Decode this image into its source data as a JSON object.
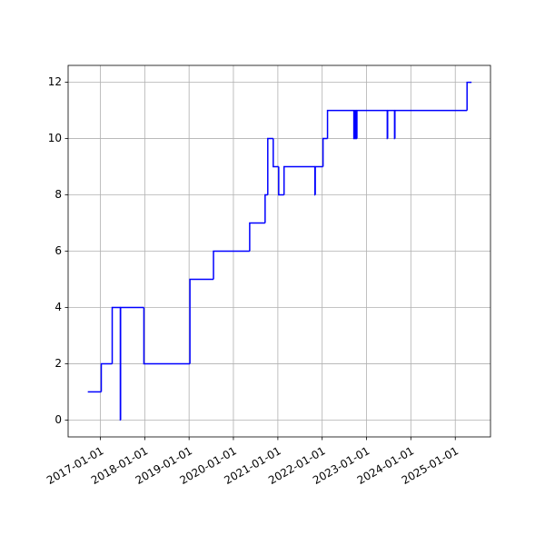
{
  "chart_data": {
    "type": "line",
    "step": "post",
    "grid": true,
    "x": [
      "2016-09-19",
      "2017-01-08",
      "2017-04-08",
      "2017-06-14",
      "2017-06-16",
      "2017-12-25",
      "2019-01-08",
      "2019-07-21",
      "2020-05-14",
      "2020-09-18",
      "2020-10-10",
      "2020-11-24",
      "2021-01-08",
      "2021-02-21",
      "2021-11-02",
      "2021-11-05",
      "2022-01-08",
      "2022-02-14",
      "2022-09-19",
      "2022-09-24",
      "2022-09-30",
      "2022-10-05",
      "2022-10-10",
      "2022-10-14",
      "2023-06-21",
      "2023-06-24",
      "2023-08-20",
      "2023-08-23",
      "2025-04-08",
      "2025-05-15"
    ],
    "series": [
      {
        "color": "blue",
        "values": [
          1,
          2,
          4,
          0,
          4,
          2,
          5,
          6,
          7,
          8,
          10,
          9,
          8,
          9,
          8,
          9,
          10,
          11,
          10,
          11,
          10,
          11,
          10,
          11,
          10,
          11,
          10,
          11,
          12,
          12
        ]
      }
    ],
    "xlim": [
      "2016-04-10",
      "2025-10-18"
    ],
    "xticks": [
      "2017-01-01",
      "2018-01-01",
      "2019-01-01",
      "2020-01-01",
      "2021-01-01",
      "2022-01-01",
      "2023-01-01",
      "2024-01-01",
      "2025-01-01"
    ],
    "ylim": [
      -0.6,
      12.6
    ],
    "yticks": [
      0,
      2,
      4,
      6,
      8,
      10,
      12
    ]
  }
}
